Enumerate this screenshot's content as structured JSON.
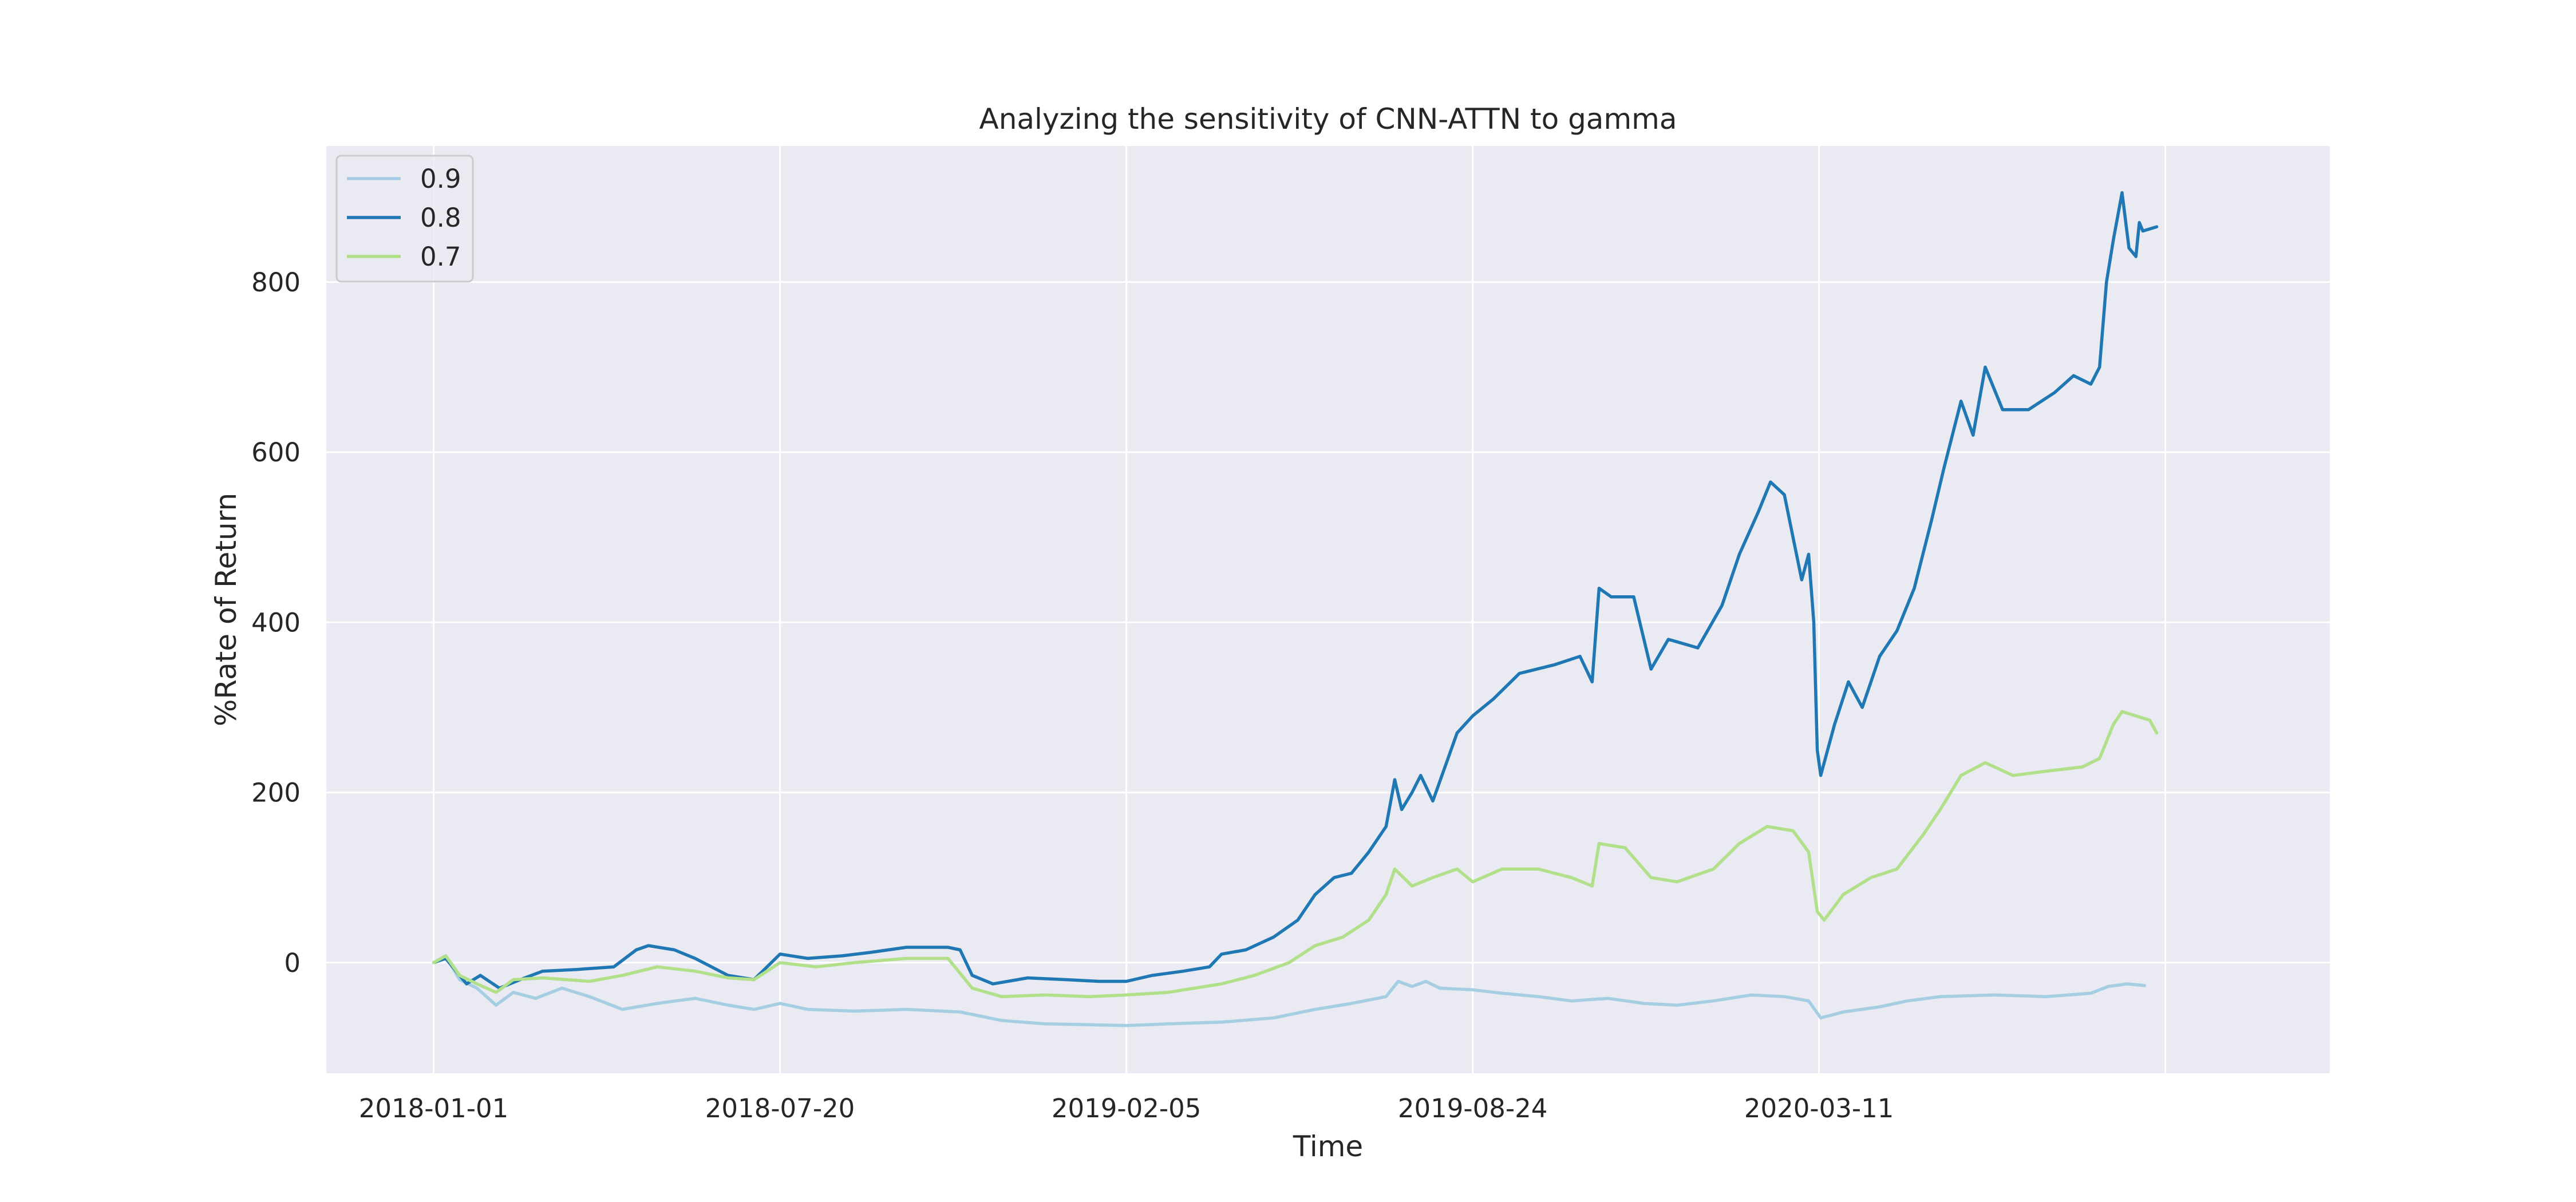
{
  "chart_data": {
    "type": "line",
    "title": "Analyzing the sensitivity of CNN-ATTN to gamma",
    "xlabel": "Time",
    "ylabel": "%Rate of Return",
    "x_range": [
      "2017-10-31",
      "2020-12-31"
    ],
    "ylim": [
      -130,
      960
    ],
    "x_ticks": [
      "2018-01-01",
      "2018-07-20",
      "2019-02-05",
      "2019-08-24",
      "2020-03-11"
    ],
    "x_extra_gridline": "2020-09-27",
    "y_ticks": [
      0,
      200,
      400,
      600,
      800
    ],
    "grid": true,
    "legend": {
      "location": "upper-left"
    },
    "background": "#eaeaf2",
    "series": [
      {
        "name": "0.9",
        "color": "#a6cee3",
        "points": [
          [
            "2018-01-01",
            0
          ],
          [
            "2018-01-08",
            8
          ],
          [
            "2018-01-16",
            -20
          ],
          [
            "2018-01-26",
            -30
          ],
          [
            "2018-02-06",
            -50
          ],
          [
            "2018-02-16",
            -35
          ],
          [
            "2018-03-01",
            -42
          ],
          [
            "2018-03-16",
            -30
          ],
          [
            "2018-04-01",
            -40
          ],
          [
            "2018-04-20",
            -55
          ],
          [
            "2018-05-10",
            -48
          ],
          [
            "2018-06-01",
            -42
          ],
          [
            "2018-06-20",
            -50
          ],
          [
            "2018-07-05",
            -55
          ],
          [
            "2018-07-20",
            -48
          ],
          [
            "2018-08-05",
            -55
          ],
          [
            "2018-09-01",
            -57
          ],
          [
            "2018-10-01",
            -55
          ],
          [
            "2018-11-01",
            -58
          ],
          [
            "2018-11-25",
            -68
          ],
          [
            "2018-12-20",
            -72
          ],
          [
            "2019-01-15",
            -73
          ],
          [
            "2019-02-05",
            -74
          ],
          [
            "2019-03-01",
            -72
          ],
          [
            "2019-04-01",
            -70
          ],
          [
            "2019-05-01",
            -65
          ],
          [
            "2019-05-25",
            -55
          ],
          [
            "2019-06-15",
            -48
          ],
          [
            "2019-07-05",
            -40
          ],
          [
            "2019-07-12",
            -22
          ],
          [
            "2019-07-20",
            -28
          ],
          [
            "2019-07-28",
            -22
          ],
          [
            "2019-08-05",
            -30
          ],
          [
            "2019-08-24",
            -32
          ],
          [
            "2019-09-10",
            -36
          ],
          [
            "2019-10-01",
            -40
          ],
          [
            "2019-10-20",
            -45
          ],
          [
            "2019-11-10",
            -42
          ],
          [
            "2019-12-01",
            -48
          ],
          [
            "2019-12-20",
            -50
          ],
          [
            "2020-01-10",
            -45
          ],
          [
            "2020-02-01",
            -38
          ],
          [
            "2020-02-20",
            -40
          ],
          [
            "2020-03-05",
            -45
          ],
          [
            "2020-03-12",
            -65
          ],
          [
            "2020-03-25",
            -58
          ],
          [
            "2020-04-15",
            -52
          ],
          [
            "2020-05-01",
            -45
          ],
          [
            "2020-05-20",
            -40
          ],
          [
            "2020-06-20",
            -38
          ],
          [
            "2020-07-20",
            -40
          ],
          [
            "2020-08-15",
            -36
          ],
          [
            "2020-08-25",
            -28
          ],
          [
            "2020-09-05",
            -25
          ],
          [
            "2020-09-15",
            -27
          ]
        ]
      },
      {
        "name": "0.8",
        "color": "#1f78b4",
        "points": [
          [
            "2018-01-01",
            0
          ],
          [
            "2018-01-08",
            5
          ],
          [
            "2018-01-14",
            -10
          ],
          [
            "2018-01-20",
            -25
          ],
          [
            "2018-01-28",
            -15
          ],
          [
            "2018-02-08",
            -30
          ],
          [
            "2018-02-20",
            -20
          ],
          [
            "2018-03-05",
            -10
          ],
          [
            "2018-03-25",
            -8
          ],
          [
            "2018-04-15",
            -5
          ],
          [
            "2018-04-28",
            15
          ],
          [
            "2018-05-05",
            20
          ],
          [
            "2018-05-20",
            15
          ],
          [
            "2018-06-01",
            5
          ],
          [
            "2018-06-20",
            -15
          ],
          [
            "2018-07-05",
            -20
          ],
          [
            "2018-07-20",
            10
          ],
          [
            "2018-08-05",
            5
          ],
          [
            "2018-08-25",
            8
          ],
          [
            "2018-09-10",
            12
          ],
          [
            "2018-10-01",
            18
          ],
          [
            "2018-10-25",
            18
          ],
          [
            "2018-11-01",
            15
          ],
          [
            "2018-11-08",
            -15
          ],
          [
            "2018-11-20",
            -25
          ],
          [
            "2018-12-10",
            -18
          ],
          [
            "2019-01-01",
            -20
          ],
          [
            "2019-01-20",
            -22
          ],
          [
            "2019-02-05",
            -22
          ],
          [
            "2019-02-20",
            -15
          ],
          [
            "2019-03-10",
            -10
          ],
          [
            "2019-03-25",
            -5
          ],
          [
            "2019-04-01",
            10
          ],
          [
            "2019-04-15",
            15
          ],
          [
            "2019-05-01",
            30
          ],
          [
            "2019-05-15",
            50
          ],
          [
            "2019-05-25",
            80
          ],
          [
            "2019-06-05",
            100
          ],
          [
            "2019-06-15",
            105
          ],
          [
            "2019-06-25",
            130
          ],
          [
            "2019-07-05",
            160
          ],
          [
            "2019-07-10",
            215
          ],
          [
            "2019-07-14",
            180
          ],
          [
            "2019-07-20",
            200
          ],
          [
            "2019-07-25",
            220
          ],
          [
            "2019-08-01",
            190
          ],
          [
            "2019-08-08",
            230
          ],
          [
            "2019-08-15",
            270
          ],
          [
            "2019-08-24",
            290
          ],
          [
            "2019-09-05",
            310
          ],
          [
            "2019-09-20",
            340
          ],
          [
            "2019-10-10",
            350
          ],
          [
            "2019-10-25",
            360
          ],
          [
            "2019-11-01",
            330
          ],
          [
            "2019-11-05",
            440
          ],
          [
            "2019-11-12",
            430
          ],
          [
            "2019-11-25",
            430
          ],
          [
            "2019-12-05",
            345
          ],
          [
            "2019-12-15",
            380
          ],
          [
            "2020-01-01",
            370
          ],
          [
            "2020-01-15",
            420
          ],
          [
            "2020-01-25",
            480
          ],
          [
            "2020-02-05",
            530
          ],
          [
            "2020-02-12",
            565
          ],
          [
            "2020-02-20",
            550
          ],
          [
            "2020-02-25",
            500
          ],
          [
            "2020-03-01",
            450
          ],
          [
            "2020-03-05",
            480
          ],
          [
            "2020-03-08",
            400
          ],
          [
            "2020-03-10",
            250
          ],
          [
            "2020-03-12",
            220
          ],
          [
            "2020-03-20",
            280
          ],
          [
            "2020-03-28",
            330
          ],
          [
            "2020-04-05",
            300
          ],
          [
            "2020-04-15",
            360
          ],
          [
            "2020-04-25",
            390
          ],
          [
            "2020-05-05",
            440
          ],
          [
            "2020-05-15",
            520
          ],
          [
            "2020-05-22",
            580
          ],
          [
            "2020-06-01",
            660
          ],
          [
            "2020-06-08",
            620
          ],
          [
            "2020-06-15",
            700
          ],
          [
            "2020-06-25",
            650
          ],
          [
            "2020-07-10",
            650
          ],
          [
            "2020-07-25",
            670
          ],
          [
            "2020-08-05",
            690
          ],
          [
            "2020-08-15",
            680
          ],
          [
            "2020-08-20",
            700
          ],
          [
            "2020-08-24",
            800
          ],
          [
            "2020-08-28",
            850
          ],
          [
            "2020-09-02",
            905
          ],
          [
            "2020-09-06",
            840
          ],
          [
            "2020-09-10",
            830
          ],
          [
            "2020-09-12",
            870
          ],
          [
            "2020-09-14",
            860
          ],
          [
            "2020-09-22",
            865
          ]
        ]
      },
      {
        "name": "0.7",
        "color": "#b2df8a",
        "points": [
          [
            "2018-01-01",
            0
          ],
          [
            "2018-01-08",
            8
          ],
          [
            "2018-01-16",
            -15
          ],
          [
            "2018-01-26",
            -25
          ],
          [
            "2018-02-06",
            -35
          ],
          [
            "2018-02-16",
            -20
          ],
          [
            "2018-03-05",
            -18
          ],
          [
            "2018-04-01",
            -22
          ],
          [
            "2018-04-20",
            -15
          ],
          [
            "2018-05-10",
            -5
          ],
          [
            "2018-06-01",
            -10
          ],
          [
            "2018-06-20",
            -18
          ],
          [
            "2018-07-05",
            -20
          ],
          [
            "2018-07-20",
            0
          ],
          [
            "2018-08-10",
            -5
          ],
          [
            "2018-09-01",
            0
          ],
          [
            "2018-10-01",
            5
          ],
          [
            "2018-10-25",
            5
          ],
          [
            "2018-11-08",
            -30
          ],
          [
            "2018-11-25",
            -40
          ],
          [
            "2018-12-20",
            -38
          ],
          [
            "2019-01-15",
            -40
          ],
          [
            "2019-02-05",
            -38
          ],
          [
            "2019-03-01",
            -35
          ],
          [
            "2019-04-01",
            -25
          ],
          [
            "2019-04-20",
            -15
          ],
          [
            "2019-05-10",
            0
          ],
          [
            "2019-05-25",
            20
          ],
          [
            "2019-06-10",
            30
          ],
          [
            "2019-06-25",
            50
          ],
          [
            "2019-07-05",
            80
          ],
          [
            "2019-07-10",
            110
          ],
          [
            "2019-07-20",
            90
          ],
          [
            "2019-08-01",
            100
          ],
          [
            "2019-08-15",
            110
          ],
          [
            "2019-08-24",
            95
          ],
          [
            "2019-09-10",
            110
          ],
          [
            "2019-10-01",
            110
          ],
          [
            "2019-10-20",
            100
          ],
          [
            "2019-11-01",
            90
          ],
          [
            "2019-11-05",
            140
          ],
          [
            "2019-11-20",
            135
          ],
          [
            "2019-12-05",
            100
          ],
          [
            "2019-12-20",
            95
          ],
          [
            "2020-01-10",
            110
          ],
          [
            "2020-01-25",
            140
          ],
          [
            "2020-02-10",
            160
          ],
          [
            "2020-02-25",
            155
          ],
          [
            "2020-03-05",
            130
          ],
          [
            "2020-03-10",
            60
          ],
          [
            "2020-03-14",
            50
          ],
          [
            "2020-03-25",
            80
          ],
          [
            "2020-04-10",
            100
          ],
          [
            "2020-04-25",
            110
          ],
          [
            "2020-05-10",
            150
          ],
          [
            "2020-05-20",
            180
          ],
          [
            "2020-06-01",
            220
          ],
          [
            "2020-06-15",
            235
          ],
          [
            "2020-07-01",
            220
          ],
          [
            "2020-07-20",
            225
          ],
          [
            "2020-08-10",
            230
          ],
          [
            "2020-08-20",
            240
          ],
          [
            "2020-08-28",
            280
          ],
          [
            "2020-09-02",
            295
          ],
          [
            "2020-09-10",
            290
          ],
          [
            "2020-09-18",
            285
          ],
          [
            "2020-09-22",
            270
          ]
        ]
      }
    ]
  }
}
